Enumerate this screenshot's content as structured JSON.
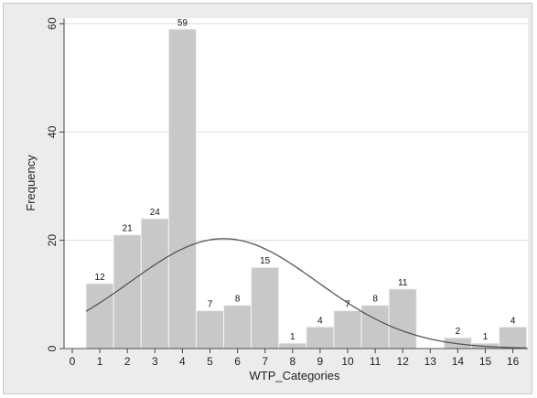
{
  "chart_data": {
    "type": "bar",
    "subtype": "histogram-with-normal-density",
    "title": "",
    "xlabel": "WTP_Categories",
    "ylabel": "Frequency",
    "categories": [
      "1",
      "2",
      "3",
      "4",
      "5",
      "6",
      "7",
      "8",
      "9",
      "10",
      "11",
      "12",
      "13",
      "14",
      "15",
      "16"
    ],
    "values": [
      12,
      21,
      24,
      59,
      7,
      8,
      15,
      1,
      4,
      7,
      8,
      11,
      0,
      2,
      1,
      4
    ],
    "data_labels": [
      "12",
      "21",
      "24",
      "59",
      "7",
      "8",
      "15",
      "1",
      "4",
      "7",
      "8",
      "11",
      "",
      "2",
      "1",
      "4"
    ],
    "x_ticks": [
      "0",
      "1",
      "2",
      "3",
      "4",
      "5",
      "6",
      "7",
      "8",
      "9",
      "10",
      "11",
      "12",
      "13",
      "14",
      "15",
      "16"
    ],
    "y_ticks": [
      "0",
      "20",
      "40",
      "60"
    ],
    "xlim": [
      0,
      16.5
    ],
    "ylim": [
      0,
      61
    ],
    "grid": "horizontal",
    "legend": "none",
    "normal_curve": {
      "mean": 5.5,
      "sd": 3.4,
      "peak": 20.3
    },
    "colors": {
      "bar_fill": "#c8c8c8",
      "bar_edge": "#f2f2f2",
      "curve": "#555555",
      "plot_background": "#ffffff",
      "outer_background": "#ececec",
      "grid": "#dcdcdc"
    }
  }
}
